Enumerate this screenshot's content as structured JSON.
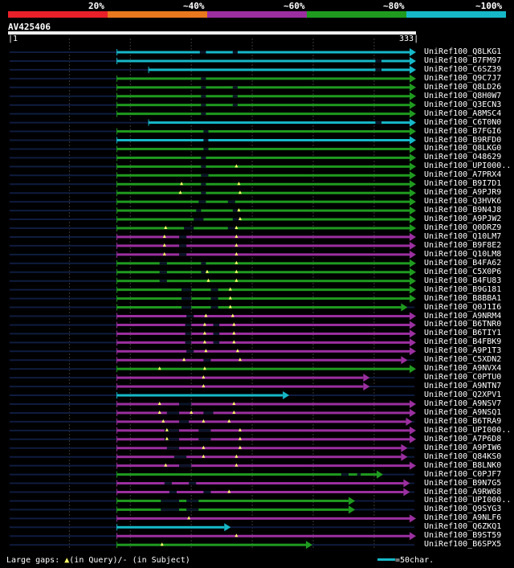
{
  "colors": {
    "bg": "#000000",
    "cat20": "#e8202a",
    "cat40": "#e8771e",
    "cat60": "#9b2fa0",
    "cat80": "#1f9a1f",
    "cat100": "#16b8c8",
    "gap_marker": "#ffff66",
    "query_bar": "#eeeeee",
    "grid": "#3a3a3a",
    "unaligned": "#0f1c3f"
  },
  "legend": {
    "labels": [
      "20%",
      "~40%",
      "~60%",
      "~80%",
      "~100%"
    ],
    "categories": [
      "cat20",
      "cat40",
      "cat60",
      "cat80",
      "cat100"
    ]
  },
  "query": {
    "name": "AV425406",
    "start": "1",
    "end": "333",
    "length": 333
  },
  "hits": [
    {
      "name": "UniRef100_Q8LKG1",
      "c": "cat100",
      "s": 89,
      "e": 333,
      "gaps": [],
      "ins": [],
      "dels": [
        [
          157,
          162
        ],
        [
          184,
          188
        ]
      ]
    },
    {
      "name": "UniRef100_B7FM97",
      "c": "cat100",
      "s": 89,
      "e": 333,
      "gaps": [],
      "ins": [],
      "dels": [
        [
          301,
          306
        ]
      ]
    },
    {
      "name": "UniRef100_C6SZ39",
      "c": "cat100",
      "s": 115,
      "e": 333,
      "gaps": [],
      "ins": [],
      "dels": [
        [
          301,
          306
        ]
      ]
    },
    {
      "name": "UniRef100_Q9C7J7",
      "c": "cat80",
      "s": 89,
      "e": 333,
      "gaps": [],
      "ins": [],
      "dels": [
        [
          158,
          162
        ]
      ]
    },
    {
      "name": "UniRef100_Q8LD26",
      "c": "cat80",
      "s": 89,
      "e": 333,
      "gaps": [],
      "ins": [],
      "dels": [
        [
          158,
          162
        ],
        [
          184,
          188
        ]
      ]
    },
    {
      "name": "UniRef100_Q8H0W7",
      "c": "cat80",
      "s": 89,
      "e": 333,
      "gaps": [],
      "ins": [],
      "dels": [
        [
          158,
          162
        ],
        [
          184,
          188
        ]
      ]
    },
    {
      "name": "UniRef100_Q3ECN3",
      "c": "cat80",
      "s": 89,
      "e": 333,
      "gaps": [],
      "ins": [],
      "dels": [
        [
          158,
          162
        ],
        [
          184,
          188
        ]
      ]
    },
    {
      "name": "UniRef100_A8MSC4",
      "c": "cat80",
      "s": 89,
      "e": 333,
      "gaps": [],
      "ins": [],
      "dels": [
        [
          158,
          162
        ]
      ]
    },
    {
      "name": "UniRef100_C6T0N0",
      "c": "cat100",
      "s": 115,
      "e": 333,
      "gaps": [],
      "ins": [],
      "dels": [
        [
          301,
          306
        ]
      ]
    },
    {
      "name": "UniRef100_B7FGI6",
      "c": "cat80",
      "s": 89,
      "e": 333,
      "gaps": [],
      "ins": [],
      "dels": [
        [
          160,
          164
        ]
      ]
    },
    {
      "name": "UniRef100_B9RFD0",
      "c": "cat100",
      "s": 89,
      "e": 333,
      "gaps": [],
      "ins": [],
      "dels": [
        [
          160,
          164
        ]
      ]
    },
    {
      "name": "UniRef100_Q8LKG0",
      "c": "cat80",
      "s": 89,
      "e": 333,
      "gaps": [],
      "ins": [],
      "dels": [
        [
          160,
          164
        ]
      ]
    },
    {
      "name": "UniRef100_O48629",
      "c": "cat80",
      "s": 89,
      "e": 333,
      "gaps": [],
      "ins": [],
      "dels": [
        [
          158,
          162
        ]
      ]
    },
    {
      "name": "UniRef100_UPI000..",
      "c": "cat80",
      "s": 89,
      "e": 333,
      "gaps": [],
      "ins": [
        187
      ],
      "dels": [
        [
          158,
          162
        ]
      ]
    },
    {
      "name": "UniRef100_A7PRX4",
      "c": "cat80",
      "s": 89,
      "e": 333,
      "gaps": [],
      "ins": [],
      "dels": [
        [
          158,
          164
        ]
      ]
    },
    {
      "name": "UniRef100_B9I7D1",
      "c": "cat80",
      "s": 89,
      "e": 333,
      "gaps": [],
      "ins": [
        142,
        189
      ],
      "dels": [
        [
          158,
          162
        ]
      ]
    },
    {
      "name": "UniRef100_A9PJR9",
      "c": "cat80",
      "s": 89,
      "e": 333,
      "gaps": [],
      "ins": [
        141,
        190
      ],
      "dels": [
        [
          158,
          162
        ]
      ]
    },
    {
      "name": "UniRef100_Q3HVK6",
      "c": "cat80",
      "s": 89,
      "e": 333,
      "gaps": [],
      "ins": [],
      "dels": [
        [
          156,
          162
        ],
        [
          180,
          186
        ]
      ]
    },
    {
      "name": "UniRef100_B9N4J8",
      "c": "cat80",
      "s": 89,
      "e": 333,
      "gaps": [],
      "ins": [
        189
      ],
      "dels": [
        [
          154,
          158
        ],
        [
          184,
          188
        ]
      ]
    },
    {
      "name": "UniRef100_A9PJW2",
      "c": "cat80",
      "s": 89,
      "e": 333,
      "gaps": [],
      "ins": [
        190
      ],
      "dels": [
        [
          152,
          160
        ],
        [
          184,
          190
        ]
      ]
    },
    {
      "name": "UniRef100_Q0DRZ9",
      "c": "cat80",
      "s": 89,
      "e": 333,
      "gaps": [],
      "ins": [
        129,
        187
      ],
      "dels": [
        [
          144,
          152
        ],
        [
          180,
          186
        ]
      ]
    },
    {
      "name": "UniRef100_Q10LM7",
      "c": "cat60",
      "s": 89,
      "e": 333,
      "gaps": [],
      "ins": [
        128,
        187
      ],
      "dels": [
        [
          140,
          146
        ]
      ]
    },
    {
      "name": "UniRef100_B9F8E2",
      "c": "cat60",
      "s": 89,
      "e": 333,
      "gaps": [],
      "ins": [
        128,
        187
      ],
      "dels": [
        [
          140,
          146
        ]
      ]
    },
    {
      "name": "UniRef100_Q10LM8",
      "c": "cat60",
      "s": 89,
      "e": 333,
      "gaps": [],
      "ins": [
        128,
        187
      ],
      "dels": [
        [
          140,
          146
        ]
      ]
    },
    {
      "name": "UniRef100_B4FA62",
      "c": "cat80",
      "s": 89,
      "e": 333,
      "gaps": [],
      "ins": [
        187
      ],
      "dels": [
        [
          124,
          130
        ],
        [
          158,
          162
        ]
      ]
    },
    {
      "name": "UniRef100_C5X0P6",
      "c": "cat80",
      "s": 89,
      "e": 333,
      "gaps": [],
      "ins": [
        163,
        187
      ],
      "dels": [
        [
          124,
          130
        ],
        [
          158,
          162
        ]
      ]
    },
    {
      "name": "UniRef100_B4FU83",
      "c": "cat80",
      "s": 89,
      "e": 333,
      "gaps": [],
      "ins": [
        164,
        187
      ],
      "dels": [
        [
          124,
          130
        ]
      ]
    },
    {
      "name": "UniRef100_B9G181",
      "c": "cat80",
      "s": 89,
      "e": 333,
      "gaps": [],
      "ins": [
        182
      ],
      "dels": [
        [
          142,
          150
        ],
        [
          166,
          172
        ]
      ]
    },
    {
      "name": "UniRef100_B8BBA1",
      "c": "cat80",
      "s": 89,
      "e": 333,
      "gaps": [],
      "ins": [
        182
      ],
      "dels": [
        [
          142,
          150
        ],
        [
          166,
          172
        ]
      ]
    },
    {
      "name": "UniRef100_Q0J1I6",
      "c": "cat80",
      "s": 89,
      "e": 326,
      "gaps": [],
      "ins": [
        182
      ],
      "dels": [
        [
          142,
          150
        ],
        [
          166,
          172
        ]
      ]
    },
    {
      "name": "UniRef100_A9NRM4",
      "c": "cat60",
      "s": 89,
      "e": 333,
      "gaps": [],
      "ins": [
        162,
        184
      ],
      "dels": [
        [
          146,
          152
        ]
      ]
    },
    {
      "name": "UniRef100_B6TNR0",
      "c": "cat60",
      "s": 89,
      "e": 333,
      "gaps": [],
      "ins": [
        161,
        185
      ],
      "dels": [
        [
          145,
          150
        ],
        [
          168,
          173
        ]
      ]
    },
    {
      "name": "UniRef100_B6TIY1",
      "c": "cat60",
      "s": 89,
      "e": 333,
      "gaps": [],
      "ins": [
        161,
        185
      ],
      "dels": [
        [
          145,
          150
        ],
        [
          168,
          173
        ]
      ]
    },
    {
      "name": "UniRef100_B4FBK9",
      "c": "cat60",
      "s": 89,
      "e": 333,
      "gaps": [],
      "ins": [
        161,
        185
      ],
      "dels": [
        [
          145,
          150
        ],
        [
          168,
          173
        ]
      ]
    },
    {
      "name": "UniRef100_A9P1T3",
      "c": "cat60",
      "s": 89,
      "e": 333,
      "gaps": [],
      "ins": [
        162,
        188
      ],
      "dels": [
        [
          146,
          152
        ]
      ]
    },
    {
      "name": "UniRef100_C5XDN2",
      "c": "cat60",
      "s": 89,
      "e": 326,
      "gaps": [],
      "ins": [
        144,
        190
      ],
      "dels": [
        [
          160,
          166
        ]
      ]
    },
    {
      "name": "UniRef100_A9NVX4",
      "c": "cat80",
      "s": 89,
      "e": 333,
      "gaps": [],
      "ins": [
        124,
        161
      ],
      "dels": []
    },
    {
      "name": "UniRef100_C0PTU0",
      "c": "cat60",
      "s": 89,
      "e": 295,
      "gaps": [],
      "ins": [
        160
      ],
      "dels": []
    },
    {
      "name": "UniRef100_A9NTN7",
      "c": "cat60",
      "s": 89,
      "e": 295,
      "gaps": [],
      "ins": [
        160
      ],
      "dels": []
    },
    {
      "name": "UniRef100_Q2XPV1",
      "c": "cat100",
      "s": 89,
      "e": 229,
      "gaps": [],
      "ins": [],
      "dels": []
    },
    {
      "name": "UniRef100_A9NSV7",
      "c": "cat60",
      "s": 89,
      "e": 333,
      "gaps": [],
      "ins": [
        124,
        185
      ],
      "dels": [
        [
          140,
          150
        ]
      ]
    },
    {
      "name": "UniRef100_A9NSQ1",
      "c": "cat60",
      "s": 89,
      "e": 333,
      "gaps": [],
      "ins": [
        124,
        150,
        185
      ],
      "dels": [
        [
          130,
          140
        ],
        [
          160,
          168
        ]
      ]
    },
    {
      "name": "UniRef100_B6TRA9",
      "c": "cat60",
      "s": 89,
      "e": 330,
      "gaps": [],
      "ins": [
        127,
        160,
        181
      ],
      "dels": [
        [
          140,
          148
        ]
      ]
    },
    {
      "name": "UniRef100_UPI000..",
      "c": "cat60",
      "s": 89,
      "e": 333,
      "gaps": [],
      "ins": [
        130,
        190
      ],
      "dels": [
        [
          128,
          140
        ],
        [
          156,
          166
        ]
      ]
    },
    {
      "name": "UniRef100_A7P6D8",
      "c": "cat60",
      "s": 89,
      "e": 333,
      "gaps": [],
      "ins": [
        130,
        190
      ],
      "dels": [
        [
          128,
          140
        ],
        [
          156,
          166
        ]
      ]
    },
    {
      "name": "UniRef100_A9PIW6",
      "c": "cat60",
      "s": 89,
      "e": 326,
      "gaps": [],
      "ins": [
        160,
        190
      ],
      "dels": [
        [
          130,
          140
        ]
      ]
    },
    {
      "name": "UniRef100_Q84KS0",
      "c": "cat60",
      "s": 89,
      "e": 326,
      "gaps": [],
      "ins": [
        160,
        187
      ],
      "dels": [
        [
          136,
          146
        ]
      ]
    },
    {
      "name": "UniRef100_B8LNK0",
      "c": "cat60",
      "s": 89,
      "e": 333,
      "gaps": [],
      "ins": [
        129,
        187
      ],
      "dels": [
        [
          140,
          150
        ]
      ]
    },
    {
      "name": "UniRef100_C0PJF7",
      "c": "cat80",
      "s": 89,
      "e": 306,
      "gaps": [],
      "ins": [],
      "dels": [
        [
          273,
          279
        ],
        [
          286,
          289
        ]
      ]
    },
    {
      "name": "UniRef100_B9N7G5",
      "c": "cat60",
      "s": 89,
      "e": 328,
      "gaps": [],
      "ins": [],
      "dels": [
        [
          128,
          134
        ],
        [
          148,
          154
        ]
      ]
    },
    {
      "name": "UniRef100_A9RW68",
      "c": "cat60",
      "s": 89,
      "e": 328,
      "gaps": [],
      "ins": [
        181
      ],
      "dels": [
        [
          132,
          138
        ],
        [
          160,
          166
        ]
      ]
    },
    {
      "name": "UniRef100_UPI000..",
      "c": "cat80",
      "s": 89,
      "e": 283,
      "gaps": [],
      "ins": [],
      "dels": [
        [
          125,
          140
        ],
        [
          146,
          156
        ]
      ]
    },
    {
      "name": "UniRef100_Q9SYG3",
      "c": "cat80",
      "s": 89,
      "e": 283,
      "gaps": [],
      "ins": [],
      "dels": [
        [
          125,
          140
        ],
        [
          146,
          156
        ]
      ]
    },
    {
      "name": "UniRef100_A9NLF6",
      "c": "cat60",
      "s": 89,
      "e": 333,
      "gaps": [],
      "ins": [
        148
      ],
      "dels": []
    },
    {
      "name": "UniRef100_Q6ZKQ1",
      "c": "cat100",
      "s": 89,
      "e": 181,
      "gaps": [],
      "ins": [],
      "dels": []
    },
    {
      "name": "UniRef100_B9ST59",
      "c": "cat60",
      "s": 89,
      "e": 333,
      "gaps": [],
      "ins": [
        187
      ],
      "dels": []
    },
    {
      "name": "UniRef100_B6SPX5",
      "c": "cat80",
      "s": 89,
      "e": 248,
      "gaps": [],
      "ins": [
        126
      ],
      "dels": []
    }
  ],
  "footer": {
    "prefix": "Large gaps: ",
    "in_query": "(in Query)",
    "separator": "/",
    "in_subject": " (in Subject)",
    "scale_label": "=50char."
  }
}
